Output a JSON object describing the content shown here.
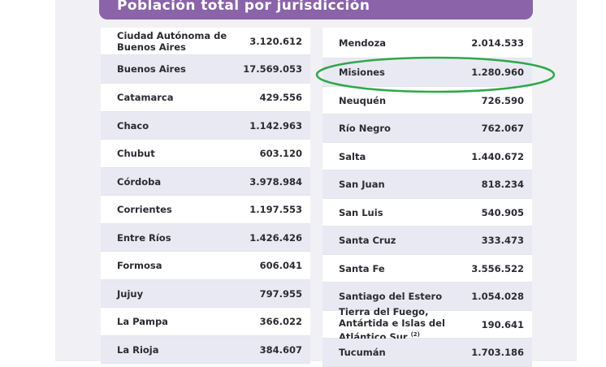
{
  "table": {
    "title": "Población total por jurisdicción",
    "left_rows": [
      {
        "name": "Ciudad Autónoma de Buenos Aires",
        "value": "3.120.612"
      },
      {
        "name": "Buenos Aires",
        "value": "17.569.053"
      },
      {
        "name": "Catamarca",
        "value": "429.556"
      },
      {
        "name": "Chaco",
        "value": "1.142.963"
      },
      {
        "name": "Chubut",
        "value": "603.120"
      },
      {
        "name": "Córdoba",
        "value": "3.978.984"
      },
      {
        "name": "Corrientes",
        "value": "1.197.553"
      },
      {
        "name": "Entre Ríos",
        "value": "1.426.426"
      },
      {
        "name": "Formosa",
        "value": "606.041"
      },
      {
        "name": "Jujuy",
        "value": "797.955"
      },
      {
        "name": "La Pampa",
        "value": "366.022"
      },
      {
        "name": "La Rioja",
        "value": "384.607"
      }
    ],
    "right_rows": [
      {
        "name": "Mendoza",
        "value": "2.014.533"
      },
      {
        "name": "Misiones",
        "value": "1.280.960"
      },
      {
        "name": "Neuquén",
        "value": "726.590"
      },
      {
        "name": "Río Negro",
        "value": "762.067"
      },
      {
        "name": "Salta",
        "value": "1.440.672"
      },
      {
        "name": "San Juan",
        "value": "818.234"
      },
      {
        "name": "San Luis",
        "value": "540.905"
      },
      {
        "name": "Santa Cruz",
        "value": "333.473"
      },
      {
        "name": "Santa Fe",
        "value": "3.556.522"
      },
      {
        "name": "Santiago del Estero",
        "value": "1.054.028"
      },
      {
        "name": "Tierra del Fuego, Antártida e Islas del Atlántico Sur",
        "footnote": "(2)",
        "value": "190.641"
      },
      {
        "name": "Tucumán",
        "value": "1.703.186"
      }
    ]
  },
  "colors": {
    "header_purple": "#8a63a8",
    "highlight_green": "#2ea84a",
    "row_alt": "#e9e9f3"
  }
}
